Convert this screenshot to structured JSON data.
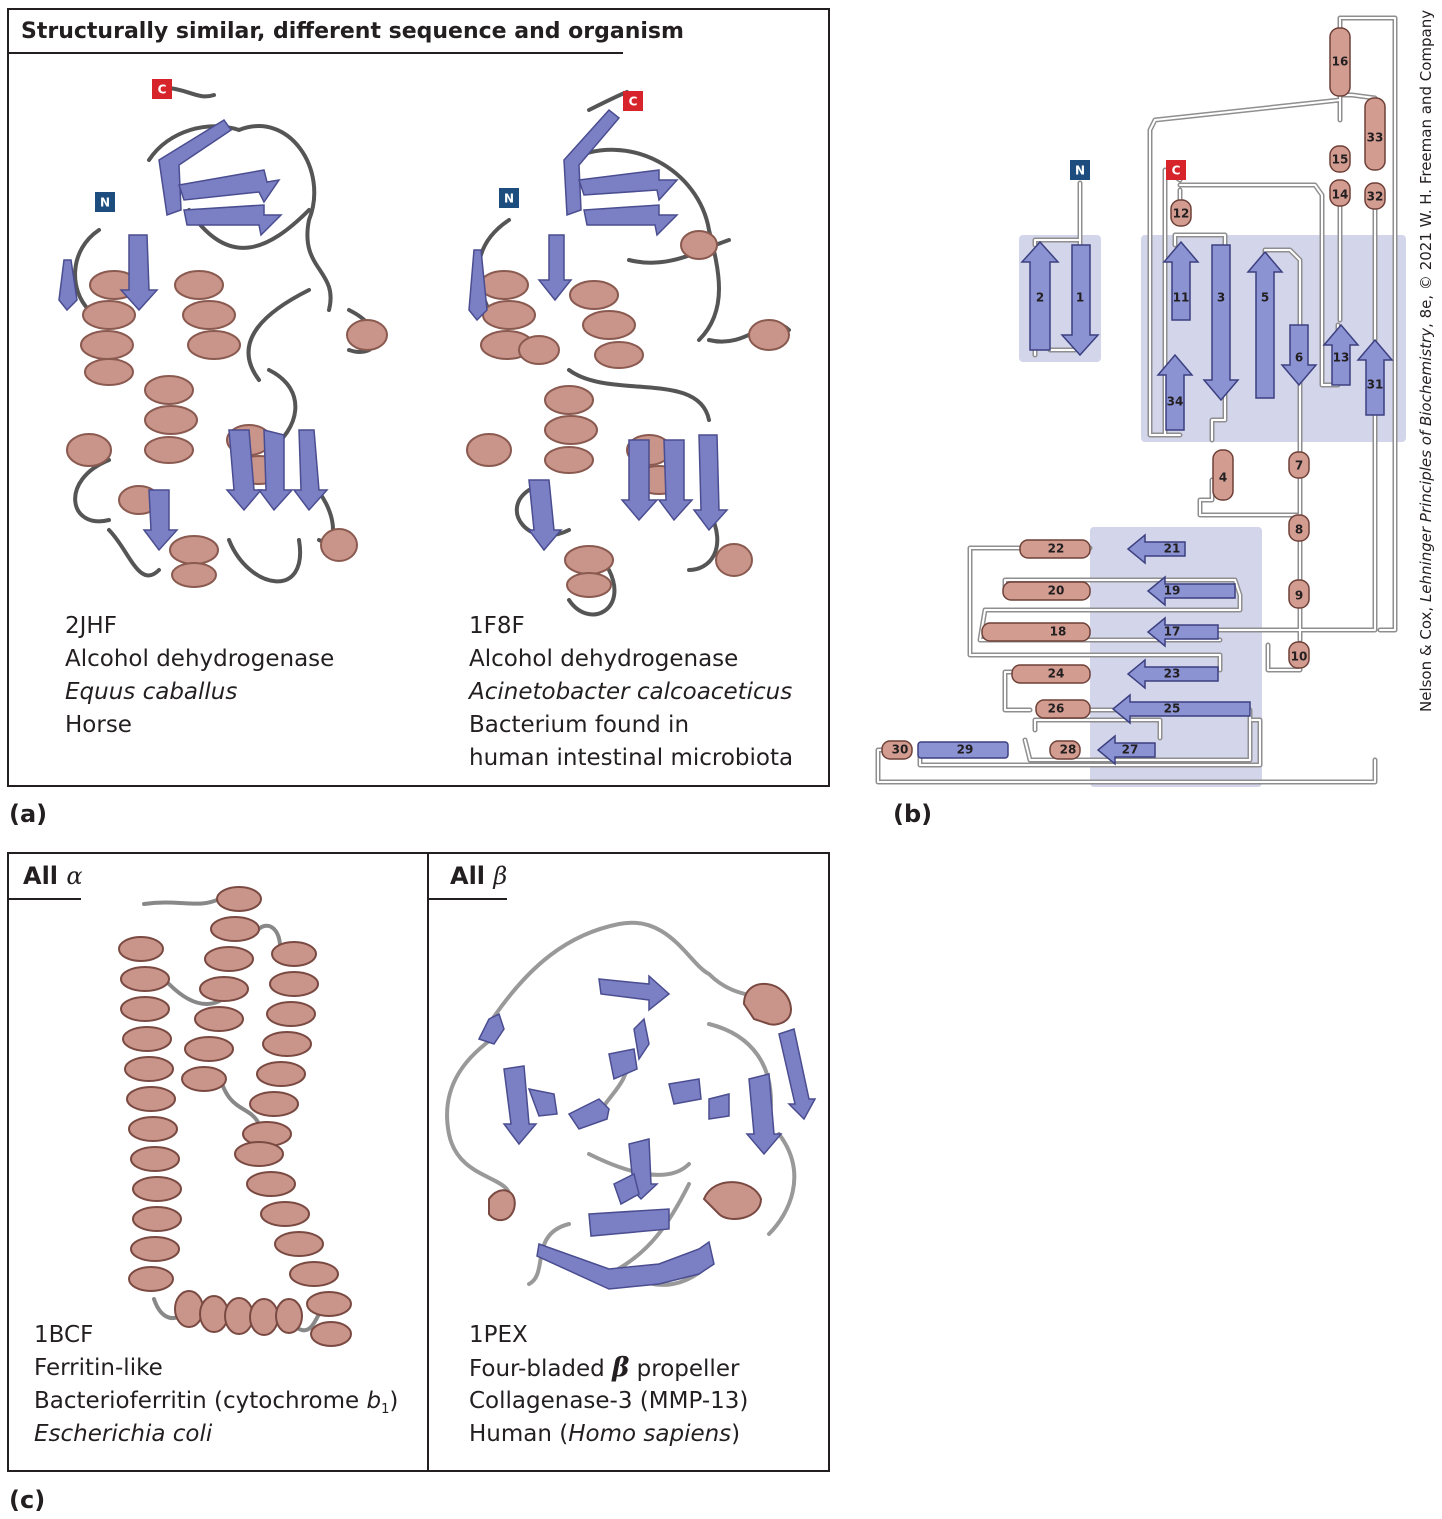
{
  "panel_a": {
    "title": "Structurally similar, different sequence and organism",
    "label": "(a)",
    "terminus_n": "N",
    "terminus_c": "C",
    "left_structure": {
      "pdb_id": "2JHF",
      "name": "Alcohol dehydrogenase",
      "species": "Equus caballus",
      "common": "Horse"
    },
    "right_structure": {
      "pdb_id": "1F8F",
      "name": "Alcohol dehydrogenase",
      "species": "Acinetobacter calcoaceticus",
      "common_line1": "Bacterium found in",
      "common_line2": "human intestinal microbiota"
    }
  },
  "panel_b": {
    "label": "(b)",
    "terminus_n": "N",
    "terminus_c": "C",
    "strands": [
      "1",
      "2",
      "3",
      "5",
      "6",
      "11",
      "13",
      "17",
      "19",
      "21",
      "23",
      "25",
      "27",
      "29",
      "31",
      "34"
    ],
    "helices": [
      "4",
      "7",
      "8",
      "9",
      "10",
      "12",
      "14",
      "15",
      "16",
      "18",
      "20",
      "22",
      "24",
      "26",
      "28",
      "30",
      "32",
      "33"
    ]
  },
  "panel_c": {
    "label": "(c)",
    "left": {
      "title_prefix": "All ",
      "title_greek": "α",
      "pdb_id": "1BCF",
      "fold": "Ferritin-like",
      "name_prefix": "Bacterioferritin (cytochrome ",
      "name_var": "b",
      "name_sub": "1",
      "name_suffix": ")",
      "species": "Escherichia coli"
    },
    "right": {
      "title_prefix": "All ",
      "title_greek": "β",
      "pdb_id": "1PEX",
      "fold_prefix": "Four-bladed ",
      "fold_greek": "β",
      "fold_suffix": " propeller",
      "name": "Collagenase-3 (MMP-13)",
      "species_prefix": "Human (",
      "species": "Homo sapiens",
      "species_suffix": ")"
    }
  },
  "credit": {
    "prefix": "Nelson & Cox, ",
    "book": "Lehninger Principles of Biochemistry",
    "suffix": ", 8e, © 2021 W. H. Freeman and Company"
  },
  "colors": {
    "helix": "#c9958a",
    "strand": "#7b7fc4",
    "loop": "#555555",
    "sheet_bg": "#d3d5ea",
    "n_term": "#1c4d7e",
    "c_term": "#d7242b"
  }
}
